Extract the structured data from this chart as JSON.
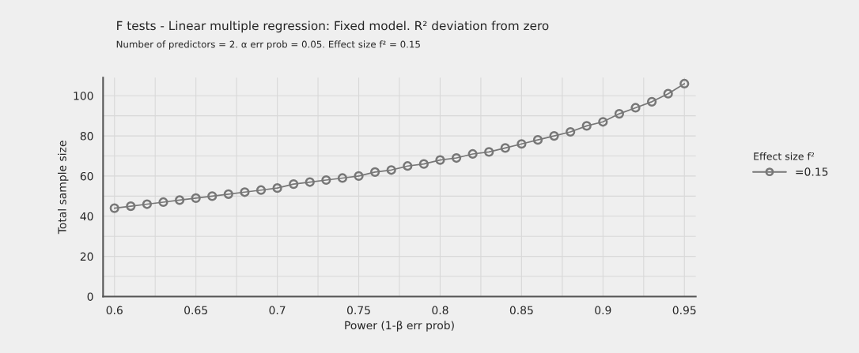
{
  "chart_data": {
    "type": "line",
    "title": "F tests - Linear multiple regression: Fixed model. R² deviation from zero",
    "subtitle": "Number of predictors = 2. α err prob = 0.05. Effect size f² = 0.15",
    "xlabel": "Power (1-β err prob)",
    "ylabel": "Total sample size",
    "legend_title": "Effect size f²",
    "legend": "right",
    "marker": "circle",
    "line_style": "solid",
    "grid": true,
    "x": [
      0.6,
      0.61,
      0.62,
      0.63,
      0.64,
      0.65,
      0.66,
      0.67,
      0.68,
      0.69,
      0.7,
      0.71,
      0.72,
      0.73,
      0.74,
      0.75,
      0.76,
      0.77,
      0.78,
      0.79,
      0.8,
      0.81,
      0.82,
      0.83,
      0.84,
      0.85,
      0.86,
      0.87,
      0.88,
      0.89,
      0.9,
      0.91,
      0.92,
      0.93,
      0.94,
      0.95
    ],
    "series": [
      {
        "name": "=0.15",
        "color": "#777777",
        "values": [
          44,
          45,
          46,
          47,
          48,
          49,
          50,
          51,
          52,
          53,
          54,
          56,
          57,
          58,
          59,
          60,
          62,
          63,
          65,
          66,
          68,
          69,
          71,
          72,
          74,
          76,
          78,
          80,
          82,
          85,
          87,
          91,
          94,
          97,
          101,
          106
        ]
      }
    ],
    "xlim": [
      0.593,
      0.957
    ],
    "ylim": [
      0,
      109
    ],
    "xticks": [
      0.6,
      {
        "value": 0.625,
        "label": null
      },
      0.65,
      {
        "value": 0.675,
        "label": null
      },
      0.7,
      {
        "value": 0.725,
        "label": null
      },
      0.75,
      {
        "value": 0.775,
        "label": null
      },
      0.8,
      {
        "value": 0.825,
        "label": null
      },
      0.85,
      {
        "value": 0.875,
        "label": null
      },
      0.9,
      {
        "value": 0.925,
        "label": null
      },
      0.95
    ],
    "yticks": [
      0,
      {
        "value": 10,
        "label": null
      },
      20,
      {
        "value": 30,
        "label": null
      },
      40,
      {
        "value": 50,
        "label": null
      },
      60,
      {
        "value": 70,
        "label": null
      },
      80,
      {
        "value": 90,
        "label": null
      },
      100
    ]
  }
}
